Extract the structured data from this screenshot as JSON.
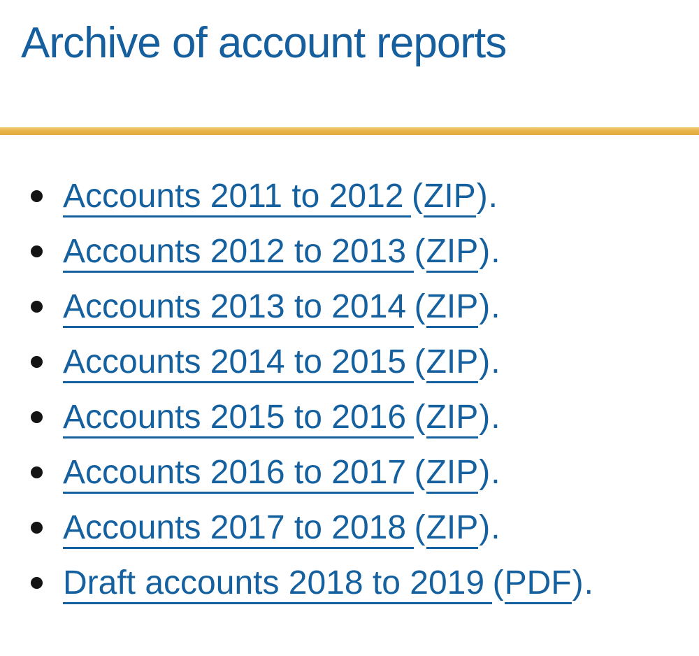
{
  "page": {
    "title": "Archive of account reports",
    "background": "#ffffff",
    "title_color": "#155f9e",
    "link_color": "#15609e",
    "divider_color": "#e8b44a",
    "bullet_color": "#141414"
  },
  "list": {
    "open_paren": "(",
    "close_paren": ")",
    "trailing_period": ".",
    "items": [
      {
        "label": "Accounts 2011 to 2012",
        "format": "ZIP"
      },
      {
        "label": "Accounts 2012 to 2013",
        "format": "ZIP"
      },
      {
        "label": "Accounts 2013 to 2014",
        "format": "ZIP"
      },
      {
        "label": "Accounts 2014 to 2015",
        "format": "ZIP"
      },
      {
        "label": "Accounts 2015 to 2016",
        "format": "ZIP"
      },
      {
        "label": "Accounts 2016 to 2017",
        "format": "ZIP"
      },
      {
        "label": "Accounts 2017 to 2018",
        "format": "ZIP"
      },
      {
        "label": "Draft accounts 2018 to 2019",
        "format": "PDF"
      }
    ]
  }
}
